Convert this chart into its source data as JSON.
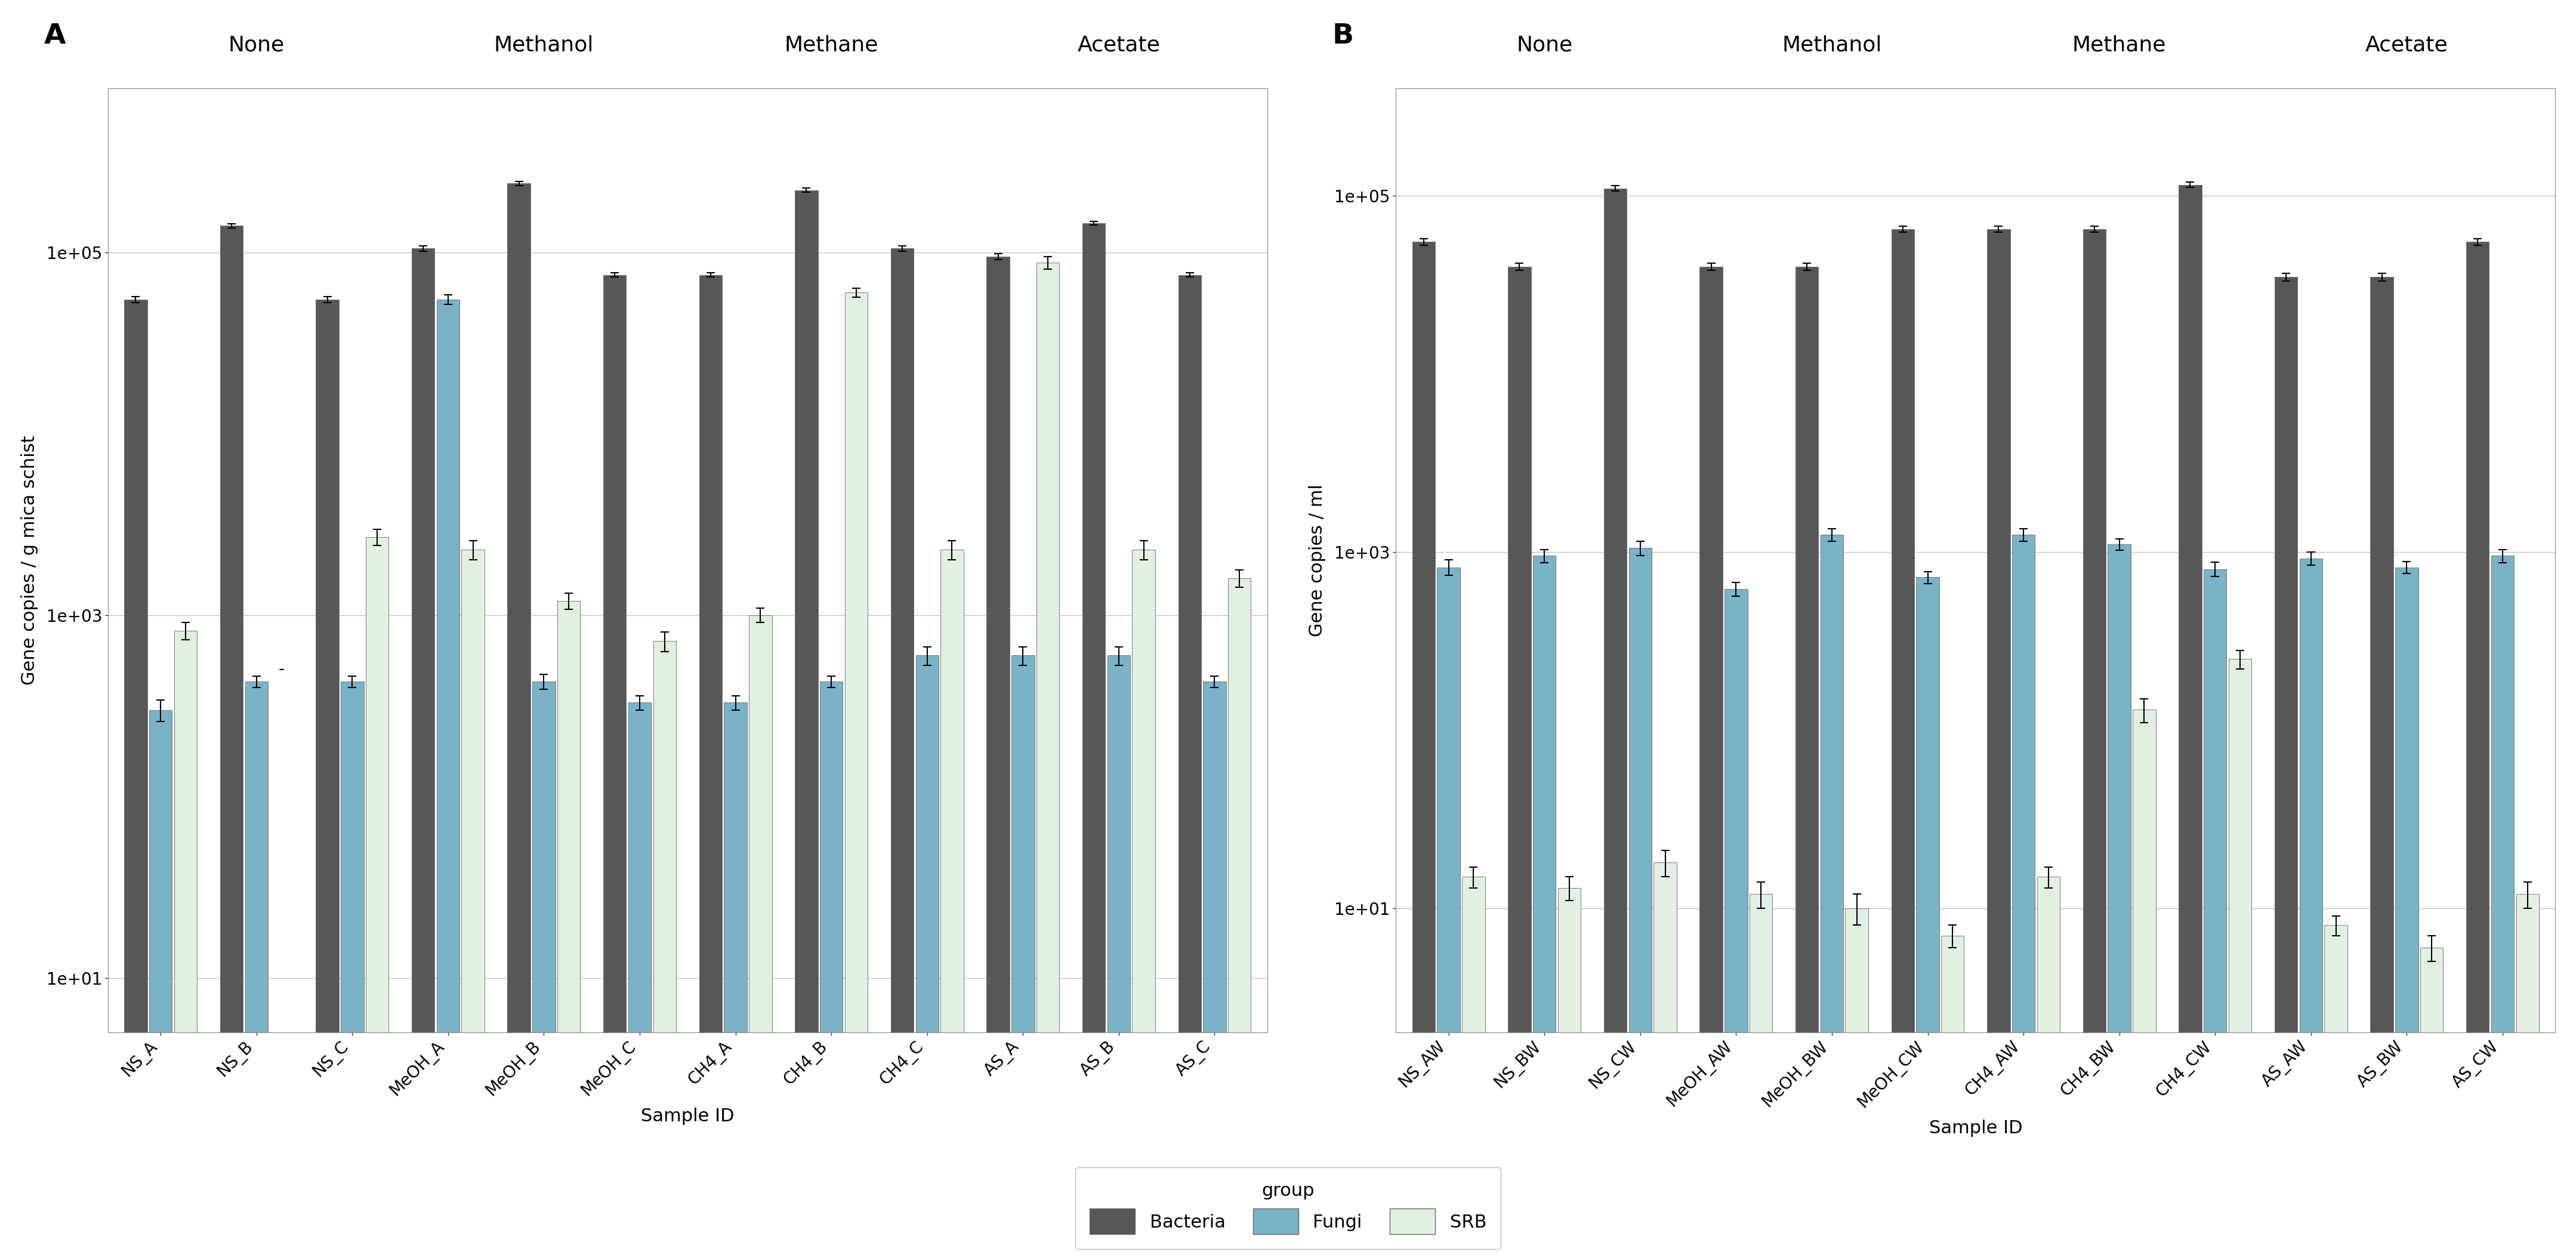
{
  "panel_A": {
    "categories": [
      "NS_A",
      "NS_B",
      "NS_C",
      "MeOH_A",
      "MeOH_B",
      "MeOH_C",
      "CH4_A",
      "CH4_B",
      "CH4_C",
      "AS_A",
      "AS_B",
      "AS_C"
    ],
    "group_labels": [
      "None",
      "Methanol",
      "Methane",
      "Acetate"
    ],
    "bacteria": [
      55000,
      140000,
      55000,
      105000,
      240000,
      75000,
      75000,
      220000,
      105000,
      95000,
      145000,
      75000
    ],
    "fungi": [
      300,
      430,
      430,
      55000,
      430,
      330,
      330,
      430,
      600,
      600,
      600,
      430
    ],
    "srb": [
      820,
      null,
      2700,
      2300,
      1200,
      720,
      1000,
      60000,
      2300,
      88000,
      2300,
      1600
    ],
    "bacteria_err": [
      2000,
      3500,
      2000,
      3500,
      6000,
      2000,
      2000,
      6000,
      3500,
      3500,
      3500,
      2000
    ],
    "fungi_err": [
      40,
      30,
      30,
      3500,
      40,
      30,
      30,
      30,
      70,
      70,
      70,
      30
    ],
    "srb_err": [
      90,
      null,
      280,
      280,
      120,
      90,
      90,
      3500,
      280,
      7000,
      280,
      180
    ],
    "ylabel": "Gene copies / g mica schist",
    "xlabel": "Sample ID",
    "ymin": 5,
    "ymax": 800000,
    "yticks": [
      10,
      1000,
      100000
    ],
    "ytick_labels": [
      "1e+01",
      "1e+03",
      "1e+05"
    ]
  },
  "panel_B": {
    "categories": [
      "NS_AW",
      "NS_BW",
      "NS_CW",
      "MeOH_AW",
      "MeOH_BW",
      "MeOH_CW",
      "CH4_AW",
      "CH4_BW",
      "CH4_CW",
      "AS_AW",
      "AS_BW",
      "AS_CW"
    ],
    "group_labels": [
      "None",
      "Methanol",
      "Methane",
      "Acetate"
    ],
    "bacteria": [
      55000,
      40000,
      110000,
      40000,
      40000,
      65000,
      65000,
      65000,
      115000,
      35000,
      35000,
      55000
    ],
    "fungi": [
      820,
      950,
      1050,
      620,
      1250,
      720,
      1250,
      1100,
      800,
      920,
      820,
      950
    ],
    "srb": [
      15,
      13,
      18,
      12,
      10,
      7,
      15,
      130,
      250,
      8,
      6,
      12
    ],
    "bacteria_err": [
      2500,
      1800,
      4000,
      1800,
      1800,
      2500,
      2500,
      2500,
      4000,
      1800,
      1800,
      2500
    ],
    "fungi_err": [
      80,
      80,
      100,
      55,
      100,
      55,
      100,
      80,
      75,
      80,
      65,
      80
    ],
    "srb_err": [
      2,
      2,
      3,
      2,
      2,
      1,
      2,
      20,
      30,
      1,
      1,
      2
    ],
    "ylabel": "Gene copies / ml",
    "xlabel": "Sample ID",
    "ymin": 2,
    "ymax": 400000,
    "yticks": [
      10,
      1000,
      100000
    ],
    "ytick_labels": [
      "1e+01",
      "1e+03",
      "1e+05"
    ]
  },
  "colors": {
    "bacteria": "#575757",
    "fungi": "#7ab3c8",
    "srb": "#e2f0e2"
  },
  "legend_labels": [
    "Bacteria",
    "Fungi",
    "SRB"
  ],
  "panel_label_A": "A",
  "panel_label_B": "B",
  "bar_width": 0.26,
  "edgecolor": "#666666",
  "background": "#ffffff",
  "grid_color": "#c0c0c0",
  "group_label_fontsize": 26,
  "axis_label_fontsize": 22,
  "tick_fontsize": 20,
  "legend_fontsize": 22,
  "panel_letter_fontsize": 34
}
